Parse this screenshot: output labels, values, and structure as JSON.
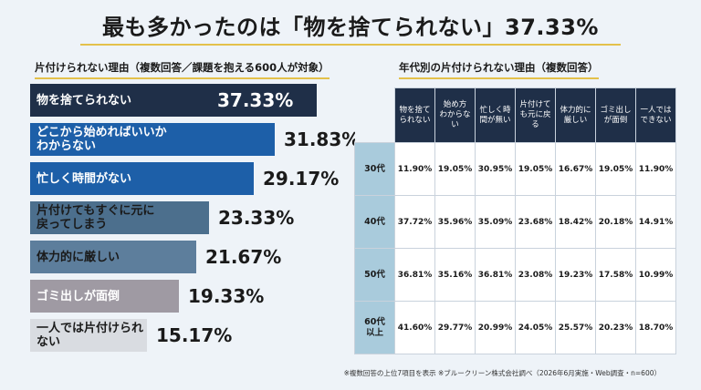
{
  "headline": "最も多かったのは「物を捨てられない」37.33%",
  "left_title": "片付けられない理由（複数回答／課題を抱える600人が対象）",
  "right_title": "年代別の片付けられない理由（複数回答）",
  "footnote": "※複数回答の上位7項目を表示 ※ブルークリーン株式会社調べ（2026年6月実施・Web調査・n=600）",
  "chart_data": [
    {
      "type": "bar",
      "orientation": "horizontal",
      "title": "片付けられない理由（複数回答／課題を抱える600人が対象）",
      "categories": [
        "物を捨てられない",
        "どこから始めればいいかわからない",
        "忙しく時間がない",
        "片付けてもすぐに元に戻ってしまう",
        "体力的に厳しい",
        "ゴミ出しが面倒",
        "一人では片付けられない"
      ],
      "display_labels": [
        "物を捨てられない",
        "どこから始めればいいか\nわからない",
        "忙しく時間がない",
        "片付けてもすぐに元に\n戻ってしまう",
        "体力的に厳しい",
        "ゴミ出しが面倒",
        "一人では片付けられない"
      ],
      "values": [
        37.33,
        31.83,
        29.17,
        23.33,
        21.67,
        19.33,
        15.17
      ],
      "value_labels": [
        "37.33%",
        "31.83%",
        "29.17%",
        "23.33%",
        "21.67%",
        "19.33%",
        "15.17%"
      ],
      "colors": [
        "#1f2f48",
        "#1d5fa8",
        "#1d5fa8",
        "#4c6f8d",
        "#5d7e9c",
        "#9f9aa3",
        "#d9dce1"
      ],
      "text_colors": [
        "#ffffff",
        "#ffffff",
        "#ffffff",
        "#1a1a1a",
        "#1a1a1a",
        "#ffffff",
        "#1a1a1a"
      ],
      "xlim": [
        0,
        37.33
      ]
    },
    {
      "type": "table",
      "title": "年代別の片付けられない理由（複数回答）",
      "columns": [
        "物を捨て\nられない",
        "始め方\nわからな\nい",
        "忙しく時\n間が無い",
        "片付けて\nも元に戻\nる",
        "体力的に\n厳しい",
        "ゴミ出し\nが面倒",
        "一人では\nできない"
      ],
      "rows": [
        {
          "label": "30代",
          "values": [
            "11.90%",
            "19.05%",
            "30.95%",
            "19.05%",
            "16.67%",
            "19.05%",
            "11.90%"
          ]
        },
        {
          "label": "40代",
          "values": [
            "37.72%",
            "35.96%",
            "35.09%",
            "23.68%",
            "18.42%",
            "20.18%",
            "14.91%"
          ]
        },
        {
          "label": "50代",
          "values": [
            "36.81%",
            "35.16%",
            "36.81%",
            "23.08%",
            "19.23%",
            "17.58%",
            "10.99%"
          ]
        },
        {
          "label": "60代\n以上",
          "values": [
            "41.60%",
            "29.77%",
            "20.99%",
            "24.05%",
            "25.57%",
            "20.23%",
            "18.70%"
          ]
        }
      ]
    }
  ]
}
